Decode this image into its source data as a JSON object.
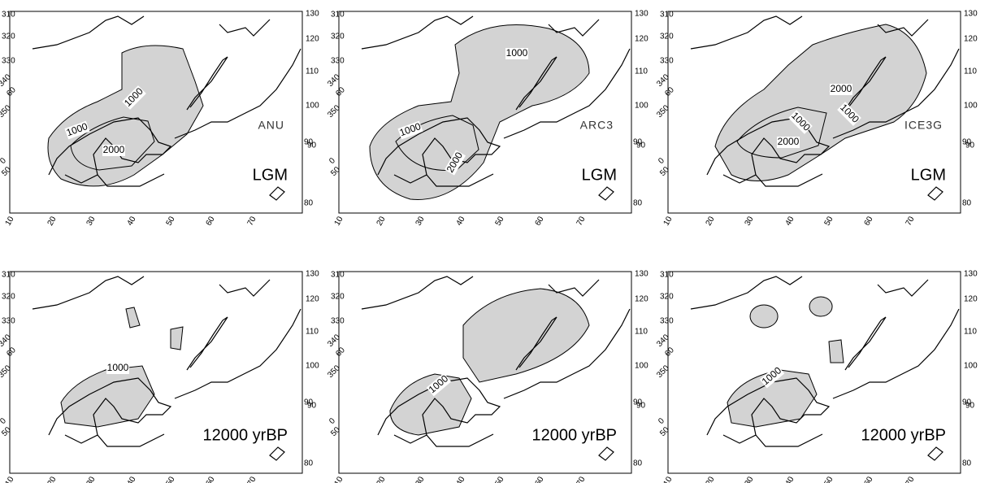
{
  "axis_labels": {
    "left": [
      "310",
      "320",
      "330",
      "340",
      "60",
      "350",
      "0",
      "50"
    ],
    "right": [
      "130",
      "120",
      "110",
      "100",
      "90",
      "90",
      "80"
    ],
    "bottom": [
      "10",
      "20",
      "30",
      "40",
      "50",
      "60",
      "70"
    ]
  },
  "panels": [
    {
      "model": "ANU",
      "period": "LGM",
      "contour_labels": [
        "1000",
        "1000",
        "2000"
      ]
    },
    {
      "model": "ARC3",
      "period": "LGM",
      "contour_labels": [
        "1000",
        "1000",
        "2000"
      ]
    },
    {
      "model": "ICE3G",
      "period": "LGM",
      "contour_labels": [
        "2000",
        "1000",
        "1000",
        "2000"
      ]
    },
    {
      "period": "12000 yrBP",
      "contour_labels": [
        "1000"
      ]
    },
    {
      "period": "12000 yrBP",
      "contour_labels": [
        "1000"
      ]
    },
    {
      "period": "12000 yrBP",
      "contour_labels": [
        "1000"
      ]
    }
  ]
}
